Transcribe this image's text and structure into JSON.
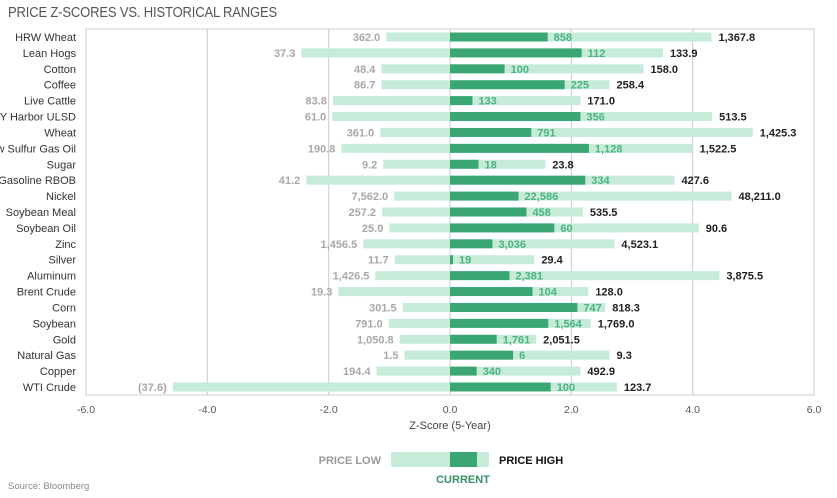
{
  "chart_data": {
    "type": "bar",
    "title": "PRICE Z-SCORES VS. HISTORICAL RANGES",
    "xlabel": "Z-Score (5-Year)",
    "xlim": [
      -6,
      6
    ],
    "xticks": [
      "-6.0",
      "-4.0",
      "-2.0",
      "0.0",
      "2.0",
      "4.0",
      "6.0"
    ],
    "xtick_values": [
      -6,
      -4,
      -2,
      0,
      2,
      4,
      6
    ],
    "grid": true,
    "categories": [
      "HRW Wheat",
      "Lean Hogs",
      "Cotton",
      "Coffee",
      "Live Cattle",
      "NY Harbor ULSD",
      "Wheat",
      "Low Sulfur Gas Oil",
      "Sugar",
      "Gasoline RBOB",
      "Nickel",
      "Soybean Meal",
      "Soybean Oil",
      "Zinc",
      "Silver",
      "Aluminum",
      "Brent Crude",
      "Corn",
      "Soybean",
      "Gold",
      "Natural Gas",
      "Copper",
      "WTI Crude"
    ],
    "series": [
      {
        "name": "Price Low z",
        "values": [
          -1.05,
          -2.45,
          -1.13,
          -1.13,
          -1.93,
          -1.94,
          -1.15,
          -1.79,
          -1.1,
          -2.37,
          -0.92,
          -1.12,
          -1.0,
          -1.43,
          -0.91,
          -1.23,
          -1.84,
          -0.78,
          -1.01,
          -0.83,
          -0.75,
          -1.21,
          -4.57
        ]
      },
      {
        "name": "Current z",
        "values": [
          1.61,
          2.17,
          0.9,
          1.89,
          0.37,
          2.15,
          1.34,
          2.29,
          0.47,
          2.23,
          1.13,
          1.26,
          1.72,
          0.7,
          0.05,
          0.98,
          1.36,
          2.1,
          1.62,
          0.77,
          1.04,
          0.44,
          1.66
        ]
      },
      {
        "name": "Price High z",
        "values": [
          4.31,
          3.51,
          3.19,
          2.63,
          2.15,
          4.32,
          4.99,
          4.0,
          1.57,
          3.7,
          4.64,
          2.19,
          4.1,
          2.71,
          1.39,
          4.44,
          2.28,
          2.56,
          2.32,
          1.42,
          2.63,
          2.15,
          2.75
        ]
      }
    ],
    "low_labels": [
      "362.0",
      "37.3",
      "48.4",
      "86.7",
      "83.8",
      "61.0",
      "361.0",
      "190.8",
      "9.2",
      "41.2",
      "7,562.0",
      "257.2",
      "25.0",
      "1,456.5",
      "11.7",
      "1,426.5",
      "19.3",
      "301.5",
      "791.0",
      "1,050.8",
      "1.5",
      "194.4",
      "(37.6)"
    ],
    "current_labels": [
      "858",
      "112",
      "100",
      "225",
      "133",
      "356",
      "791",
      "1,128",
      "18",
      "334",
      "22,586",
      "458",
      "60",
      "3,036",
      "19",
      "2,381",
      "104",
      "747",
      "1,564",
      "1,761",
      "6",
      "340",
      "100"
    ],
    "high_labels": [
      "1,367.8",
      "133.9",
      "158.0",
      "258.4",
      "171.0",
      "513.5",
      "1,425.3",
      "1,522.5",
      "23.8",
      "427.6",
      "48,211.0",
      "535.5",
      "90.6",
      "4,523.1",
      "29.4",
      "3,875.5",
      "128.0",
      "818.3",
      "1,769.0",
      "2,051.5",
      "9.3",
      "492.9",
      "123.7"
    ],
    "legend": {
      "low": "PRICE LOW",
      "high": "PRICE HIGH",
      "current": "CURRENT",
      "placement": "bottom-center"
    },
    "colors": {
      "range": "#c6ebd8",
      "current": "#3aa673",
      "grid": "#cccccc"
    }
  },
  "source": "Source: Bloomberg"
}
